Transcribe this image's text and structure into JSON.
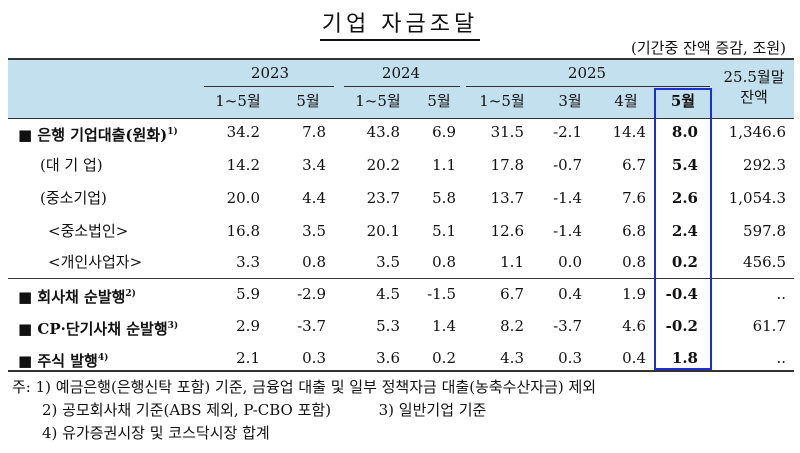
{
  "title": "기업 자금조달",
  "unit": "(기간중 잔액 증감, 조원)",
  "header": {
    "years": [
      "2023",
      "2024",
      "2025"
    ],
    "sub_2023": [
      "1~5월",
      "5월"
    ],
    "sub_2024": [
      "1~5월",
      "5월"
    ],
    "sub_2025": [
      "1~5월",
      "3월",
      "4월",
      "5월"
    ],
    "balance_line1": "25.5월말",
    "balance_line2": "잔액"
  },
  "rows": [
    {
      "label": "■ 은행 기업대출(원화)",
      "sup": "1)",
      "values": [
        "34.2",
        "7.8",
        "43.8",
        "6.9",
        "31.5",
        "-2.1",
        "14.4",
        "8.0",
        "1,346.6"
      ]
    },
    {
      "label": "(대 기 업)",
      "sup": "",
      "values": [
        "14.2",
        "3.4",
        "20.2",
        "1.1",
        "17.8",
        "-0.7",
        "6.7",
        "5.4",
        "292.3"
      ]
    },
    {
      "label": "(중소기업)",
      "sup": "",
      "values": [
        "20.0",
        "4.4",
        "23.7",
        "5.8",
        "13.7",
        "-1.4",
        "7.6",
        "2.6",
        "1,054.3"
      ]
    },
    {
      "label": "<중소법인>",
      "sup": "",
      "values": [
        "16.8",
        "3.5",
        "20.1",
        "5.1",
        "12.6",
        "-1.4",
        "6.8",
        "2.4",
        "597.8"
      ]
    },
    {
      "label": "<개인사업자>",
      "sup": "",
      "values": [
        "3.3",
        "0.8",
        "3.5",
        "0.8",
        "1.1",
        "0.0",
        "0.8",
        "0.2",
        "456.5"
      ]
    },
    {
      "label": "■ 회사채 순발행",
      "sup": "2)",
      "values": [
        "5.9",
        "-2.9",
        "4.5",
        "-1.5",
        "6.7",
        "0.4",
        "1.9",
        "-0.4",
        ".."
      ]
    },
    {
      "label": "■ CP·단기사채 순발행",
      "sup": "3)",
      "values": [
        "2.9",
        "-3.7",
        "5.3",
        "1.4",
        "8.2",
        "-3.7",
        "4.6",
        "-0.2",
        "61.7"
      ]
    },
    {
      "label": "■ 주식 발행",
      "sup": "4)",
      "values": [
        "2.1",
        "0.3",
        "3.6",
        "0.2",
        "4.3",
        "0.3",
        "0.4",
        "1.8",
        ".."
      ]
    }
  ],
  "notes": [
    "주: 1) 예금은행(은행신탁 포함) 기준, 금융업 대출 및 일부 정책자금 대출(농축수산자금) 제외",
    "2) 공모회사채 기준(ABS 제외, P-CBO 포함)",
    "3) 일반기업 기준",
    "4) 유가증권시장 및 코스닥시장 합계"
  ]
}
